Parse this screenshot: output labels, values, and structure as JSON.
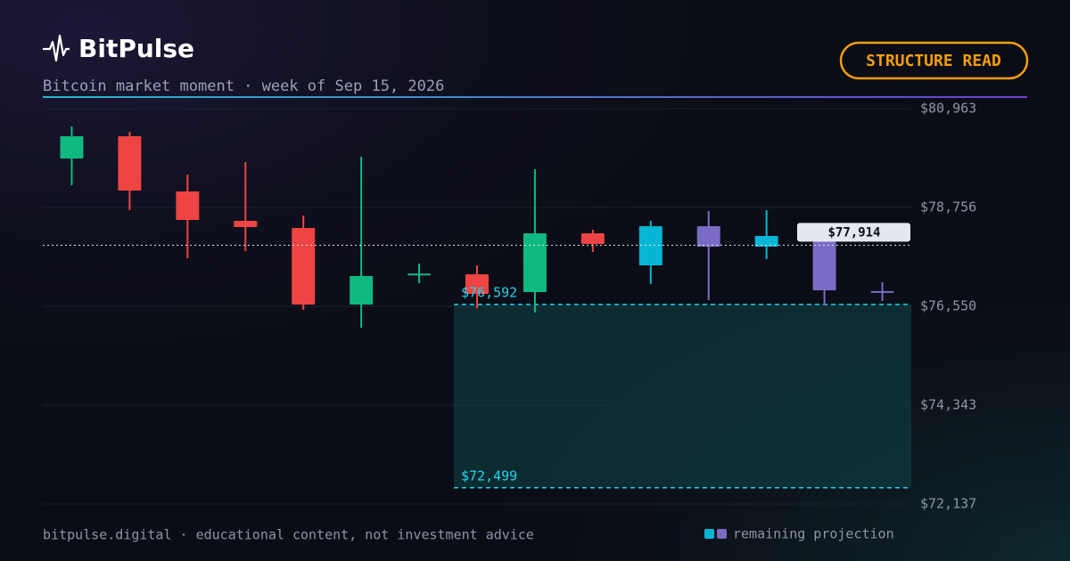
{
  "header": {
    "brand": "BitPulse",
    "subtitle": "Bitcoin market moment · week of Sep 15, 2026",
    "button": "STRUCTURE READ"
  },
  "footer": {
    "text": "bitpulse.digital · educational content, not investment advice"
  },
  "chart_data": {
    "type": "candlestick",
    "open": [
      79850,
      80347,
      79114,
      78458,
      78299,
      76590,
      77250,
      77266,
      76868,
      78180,
      77464,
      78339,
      77882,
      78061,
      76890
    ],
    "high": [
      80565,
      80446,
      79492,
      79770,
      78578,
      79890,
      77504,
      77464,
      79611,
      78260,
      78458,
      78677,
      78697,
      78180,
      77087
    ],
    "low": [
      79254,
      78697,
      77623,
      77783,
      76471,
      76073,
      77067,
      76510,
      76411,
      77763,
      77047,
      76689,
      77604,
      76570,
      76669
    ],
    "close": [
      80347,
      79134,
      78478,
      78319,
      76590,
      77226,
      77280,
      76828,
      78180,
      77942,
      78339,
      77882,
      78120,
      76908,
      76860
    ],
    "up_color": "#10b981",
    "down_color": "#ef4444",
    "projection_start": 10,
    "projection_up_color": "#06b6d4",
    "projection_down_color": "#7c6bc4",
    "legend": "remaining projection",
    "ylim": [
      72137,
      80963
    ],
    "yticks": [
      {
        "value": 72137,
        "label": "$72,137"
      },
      {
        "value": 74343,
        "label": "$74,343"
      },
      {
        "value": 76550,
        "label": "$76,550"
      },
      {
        "value": 78756,
        "label": "$78,756"
      },
      {
        "value": 80963,
        "label": "$80,963"
      }
    ],
    "grid": true,
    "price_line": {
      "value": 77914,
      "label": "$77,914"
    },
    "zone": {
      "high": {
        "value": 76592,
        "label": "$76,592"
      },
      "low": {
        "value": 72499,
        "label": "$72,499"
      }
    }
  }
}
